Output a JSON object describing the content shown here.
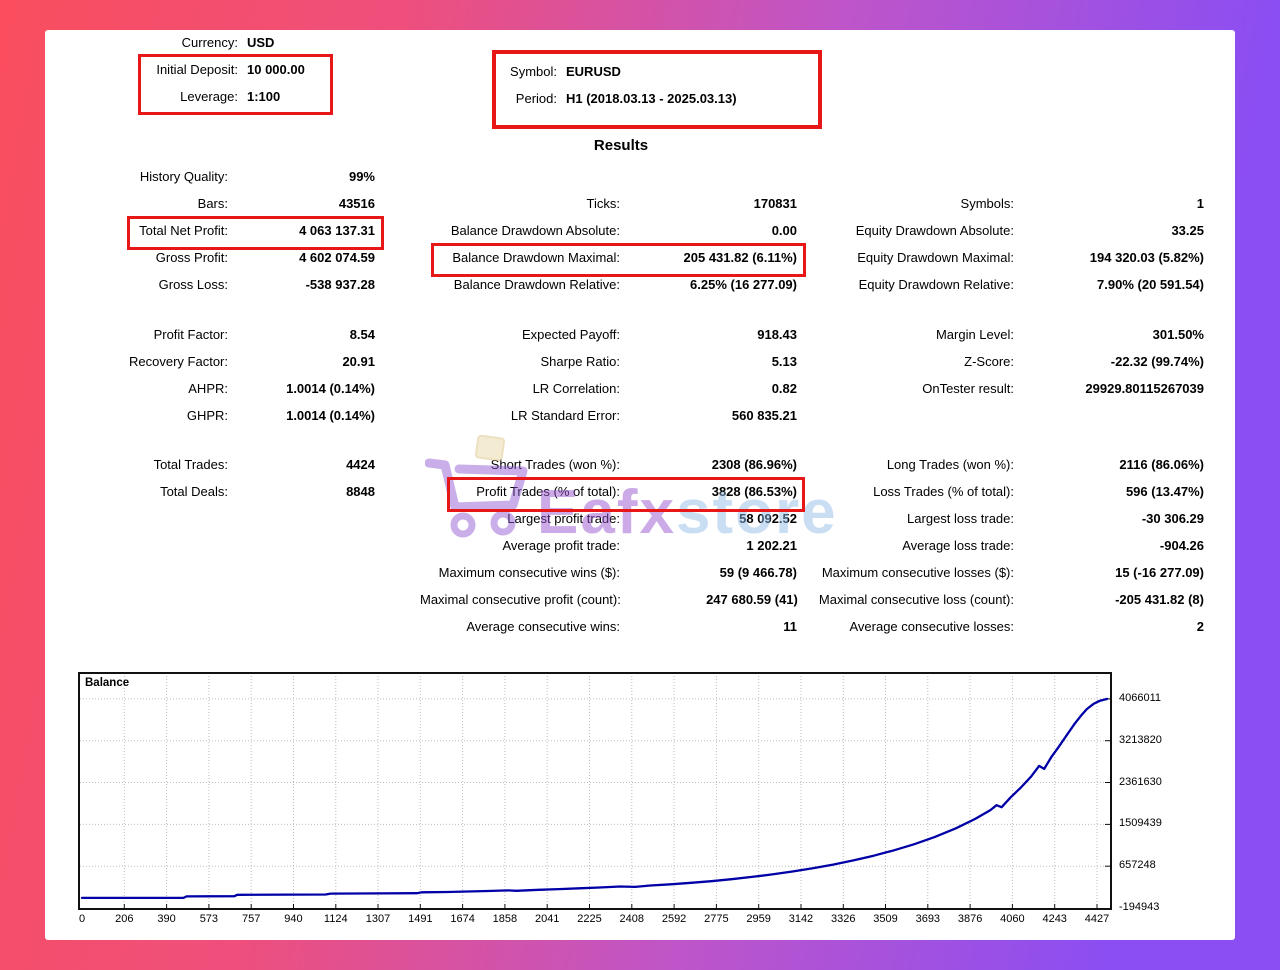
{
  "header": {
    "currency_label": "Currency:",
    "currency_value": "USD",
    "initial_deposit_label": "Initial Deposit:",
    "initial_deposit_value": "10 000.00",
    "leverage_label": "Leverage:",
    "leverage_value": "1:100",
    "symbol_label": "Symbol:",
    "symbol_value": "EURUSD",
    "period_label": "Period:",
    "period_value": "H1 (2018.03.13 - 2025.03.13)",
    "results_title": "Results"
  },
  "stats": {
    "col1": {
      "group1": [
        {
          "label": "History Quality:",
          "value": "99%"
        },
        {
          "label": "Bars:",
          "value": "43516"
        },
        {
          "label": "Total Net Profit:",
          "value": "4 063 137.31"
        },
        {
          "label": "Gross Profit:",
          "value": "4 602 074.59"
        },
        {
          "label": "Gross Loss:",
          "value": "-538 937.28"
        }
      ],
      "group2": [
        {
          "label": "Profit Factor:",
          "value": "8.54"
        },
        {
          "label": "Recovery Factor:",
          "value": "20.91"
        },
        {
          "label": "AHPR:",
          "value": "1.0014 (0.14%)"
        },
        {
          "label": "GHPR:",
          "value": "1.0014 (0.14%)"
        }
      ],
      "group3": [
        {
          "label": "Total Trades:",
          "value": "4424"
        },
        {
          "label": "Total Deals:",
          "value": "8848"
        }
      ]
    },
    "col2": {
      "group1": [
        {
          "label": "Ticks:",
          "value": "170831"
        },
        {
          "label": "Balance Drawdown Absolute:",
          "value": "0.00"
        },
        {
          "label": "Balance Drawdown Maximal:",
          "value": "205 431.82 (6.11%)"
        },
        {
          "label": "Balance Drawdown Relative:",
          "value": "6.25% (16 277.09)"
        }
      ],
      "group2": [
        {
          "label": "Expected Payoff:",
          "value": "918.43"
        },
        {
          "label": "Sharpe Ratio:",
          "value": "5.13"
        },
        {
          "label": "LR Correlation:",
          "value": "0.82"
        },
        {
          "label": "LR Standard Error:",
          "value": "560 835.21"
        }
      ],
      "group3": [
        {
          "label": "Short Trades (won %):",
          "value": "2308 (86.96%)"
        },
        {
          "label": "Profit Trades (% of total):",
          "value": "3828 (86.53%)"
        },
        {
          "label": "Largest profit trade:",
          "value": "58 092.52"
        },
        {
          "label": "Average profit trade:",
          "value": "1 202.21"
        },
        {
          "label": "Maximum consecutive wins ($):",
          "value": "59 (9 466.78)"
        },
        {
          "label": "Maximal consecutive profit (count):",
          "value": "247 680.59 (41)"
        },
        {
          "label": "Average consecutive wins:",
          "value": "11"
        }
      ]
    },
    "col3": {
      "group1": [
        {
          "label": "Symbols:",
          "value": "1"
        },
        {
          "label": "Equity Drawdown Absolute:",
          "value": "33.25"
        },
        {
          "label": "Equity Drawdown Maximal:",
          "value": "194 320.03 (5.82%)"
        },
        {
          "label": "Equity Drawdown Relative:",
          "value": "7.90% (20 591.54)"
        }
      ],
      "group2": [
        {
          "label": "Margin Level:",
          "value": "301.50%"
        },
        {
          "label": "Z-Score:",
          "value": "-22.32 (99.74%)"
        },
        {
          "label": "OnTester result:",
          "value": "29929.80115267039"
        }
      ],
      "group3": [
        {
          "label": "Long Trades (won %):",
          "value": "2116 (86.06%)"
        },
        {
          "label": "Loss Trades (% of total):",
          "value": "596 (13.47%)"
        },
        {
          "label": "Largest loss trade:",
          "value": "-30 306.29"
        },
        {
          "label": "Average loss trade:",
          "value": "-904.26"
        },
        {
          "label": "Maximum consecutive losses ($):",
          "value": "15 (-16 277.09)"
        },
        {
          "label": "Maximal consecutive loss (count):",
          "value": "-205 431.82 (8)"
        },
        {
          "label": "Average consecutive losses:",
          "value": "2"
        }
      ]
    }
  },
  "watermark": {
    "brand_primary": "Eafx",
    "brand_secondary": "store"
  },
  "colors": {
    "highlight_box": "#e81717",
    "balance_line": "#0000a6",
    "grid": "#bdbdbd"
  },
  "chart_data": {
    "type": "line",
    "title": "Balance",
    "series_name": "Balance",
    "line_color": "#0000a6",
    "legend_position": "top-left-inside",
    "grid": "dotted",
    "x_ticks": [
      "0",
      "206",
      "390",
      "573",
      "757",
      "940",
      "1124",
      "1307",
      "1491",
      "1674",
      "1858",
      "2041",
      "2225",
      "2408",
      "2592",
      "2775",
      "2959",
      "3142",
      "3326",
      "3509",
      "3693",
      "3876",
      "4060",
      "4243",
      "4427"
    ],
    "y_ticks": [
      4066011,
      3213820,
      2361630,
      1509439,
      657248,
      -194943
    ],
    "y_axis": {
      "min": -194943,
      "max": 4573207
    },
    "x_axis": {
      "label_type": "trade number",
      "first": 0,
      "last": 4427
    },
    "points": [
      [
        0,
        10000
      ],
      [
        0.1,
        11000
      ],
      [
        0.103,
        42000
      ],
      [
        0.15,
        46000
      ],
      [
        0.153,
        74000
      ],
      [
        0.24,
        80000
      ],
      [
        0.245,
        99000
      ],
      [
        0.33,
        107000
      ],
      [
        0.335,
        125000
      ],
      [
        0.36,
        132000
      ],
      [
        0.4,
        152000
      ],
      [
        0.42,
        163000
      ],
      [
        0.428,
        156000
      ],
      [
        0.45,
        176000
      ],
      [
        0.47,
        191000
      ],
      [
        0.49,
        206000
      ],
      [
        0.51,
        223000
      ],
      [
        0.53,
        243000
      ],
      [
        0.545,
        236000
      ],
      [
        0.56,
        263000
      ],
      [
        0.58,
        289000
      ],
      [
        0.6,
        318000
      ],
      [
        0.62,
        352000
      ],
      [
        0.64,
        392000
      ],
      [
        0.66,
        438000
      ],
      [
        0.68,
        490000
      ],
      [
        0.7,
        548000
      ],
      [
        0.72,
        615000
      ],
      [
        0.74,
        690000
      ],
      [
        0.76,
        775000
      ],
      [
        0.78,
        870000
      ],
      [
        0.8,
        980000
      ],
      [
        0.82,
        1105000
      ],
      [
        0.84,
        1250000
      ],
      [
        0.861,
        1430000
      ],
      [
        0.88,
        1620000
      ],
      [
        0.895,
        1800000
      ],
      [
        0.901,
        1900000
      ],
      [
        0.906,
        1860000
      ],
      [
        0.915,
        2060000
      ],
      [
        0.925,
        2260000
      ],
      [
        0.935,
        2480000
      ],
      [
        0.943,
        2700000
      ],
      [
        0.948,
        2640000
      ],
      [
        0.955,
        2880000
      ],
      [
        0.962,
        3080000
      ],
      [
        0.97,
        3320000
      ],
      [
        0.978,
        3560000
      ],
      [
        0.984,
        3720000
      ],
      [
        0.99,
        3860000
      ],
      [
        0.997,
        3970000
      ],
      [
        1.003,
        4030000
      ],
      [
        1.01,
        4066011
      ]
    ]
  }
}
